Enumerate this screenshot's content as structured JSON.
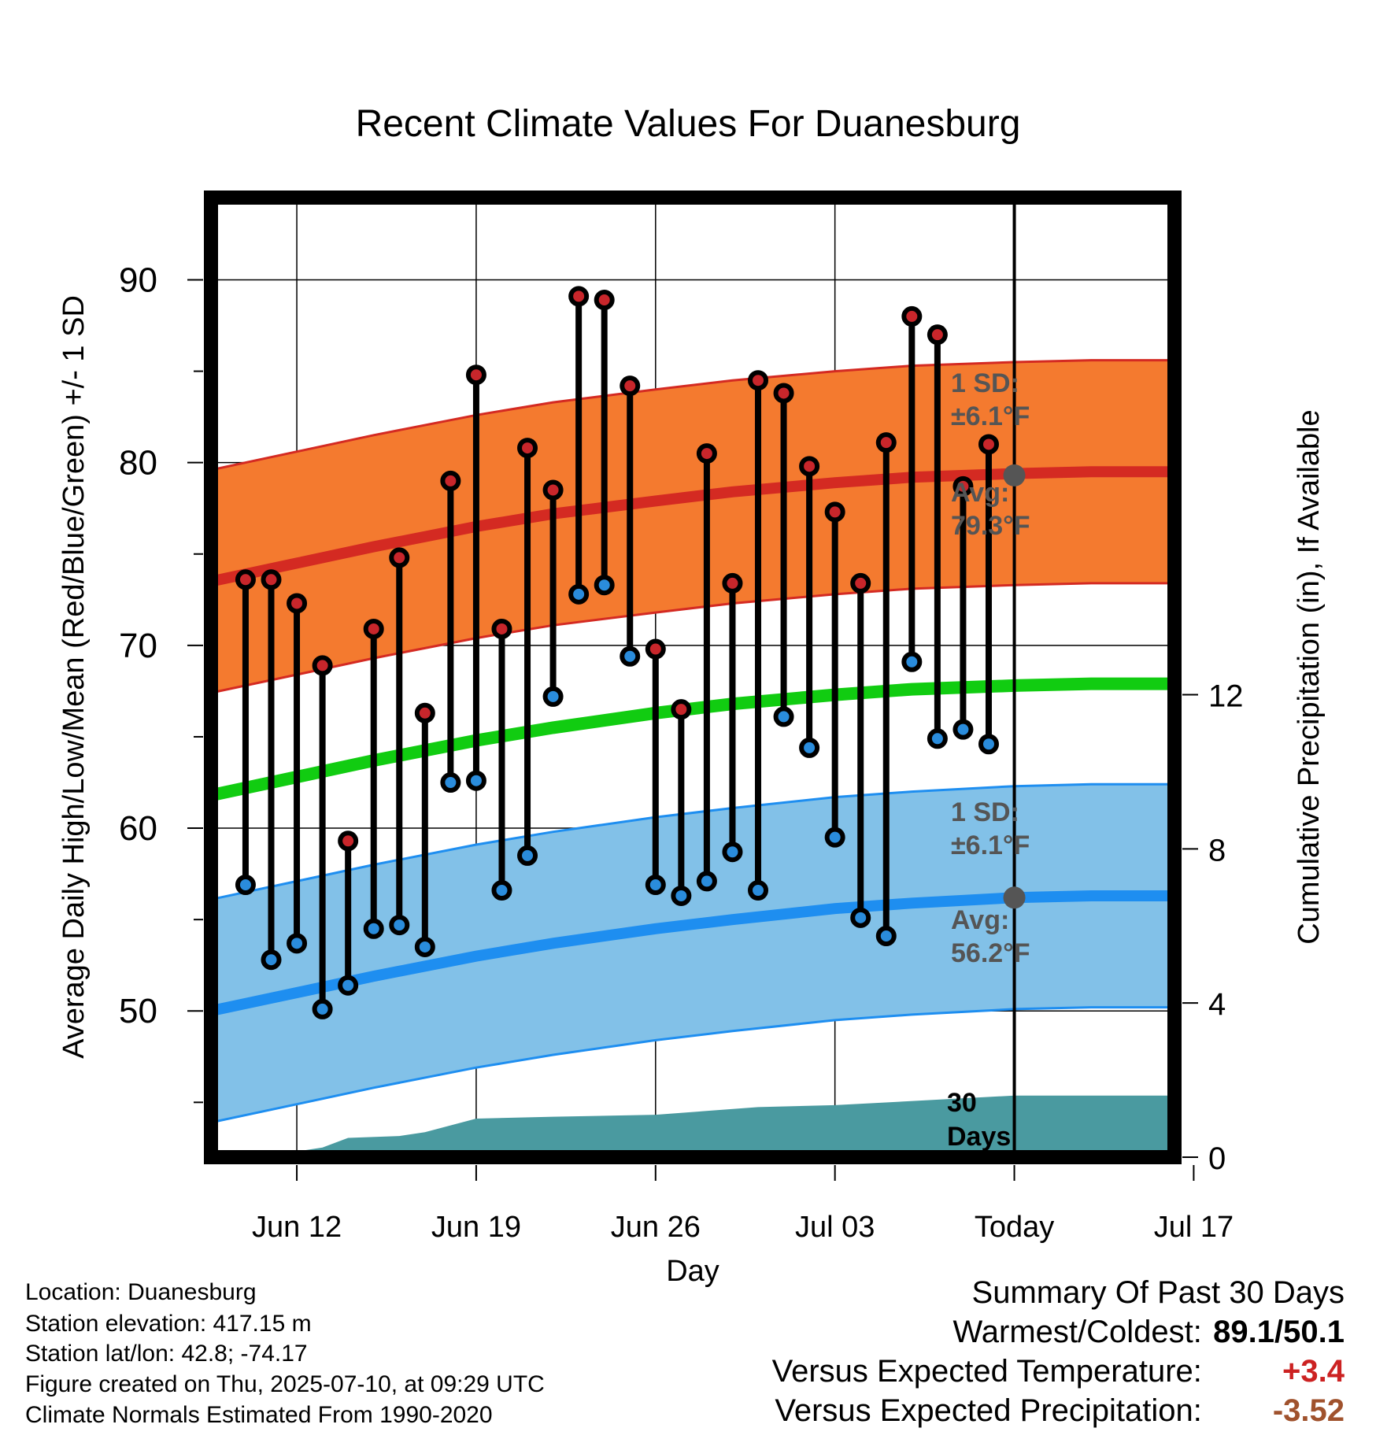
{
  "chart_data": {
    "type": "line",
    "title": "Recent Climate Values For Duanesburg",
    "xlabel": "Day",
    "ylabel": "Average Daily High/Low/Mean (Red/Blue/Green) +/- 1 SD",
    "y2label": "Cumulative Precipitation (in), If Available",
    "ylim": [
      42,
      94.5
    ],
    "y2lim": [
      0,
      24.9
    ],
    "yticks": [
      50,
      60,
      70,
      80,
      90
    ],
    "y2ticks": [
      0,
      4,
      8,
      12
    ],
    "xlim": [
      -3.35,
      34.25
    ],
    "xticks": [
      {
        "pos": 0,
        "label": "Jun 12"
      },
      {
        "pos": 7,
        "label": "Jun 19"
      },
      {
        "pos": 14,
        "label": "Jun 26"
      },
      {
        "pos": 21,
        "label": "Jul 03"
      },
      {
        "pos": 28,
        "label": "Today"
      },
      {
        "pos": 35,
        "label": "Jul 17"
      }
    ],
    "today_label": "30 Days",
    "observed": {
      "days": [
        -2,
        -1,
        0,
        1,
        2,
        3,
        4,
        5,
        6,
        7,
        8,
        9,
        10,
        11,
        12,
        13,
        14,
        15,
        16,
        17,
        18,
        19,
        20,
        21,
        22,
        23,
        24,
        25,
        26,
        27
      ],
      "high": [
        73.6,
        73.6,
        72.3,
        68.9,
        59.3,
        70.9,
        74.8,
        66.3,
        79.0,
        84.8,
        70.9,
        80.8,
        78.5,
        89.1,
        88.9,
        84.2,
        69.8,
        66.5,
        80.5,
        73.4,
        84.5,
        83.8,
        79.8,
        77.3,
        73.4,
        81.1,
        88.0,
        87.0,
        78.7,
        81.0
      ],
      "low": [
        56.9,
        52.8,
        53.7,
        50.1,
        51.4,
        54.5,
        54.7,
        53.5,
        62.5,
        62.6,
        56.6,
        58.5,
        67.2,
        72.8,
        73.3,
        69.4,
        56.9,
        56.3,
        57.1,
        58.7,
        56.6,
        66.1,
        64.4,
        59.5,
        55.1,
        54.1,
        69.1,
        64.9,
        65.4,
        64.6
      ]
    },
    "normals": {
      "days": [
        -3.35,
        0,
        3,
        7,
        10,
        14,
        17,
        21,
        24,
        28,
        31,
        34.25
      ],
      "high_avg": [
        73.5,
        74.5,
        75.4,
        76.5,
        77.2,
        77.9,
        78.4,
        78.9,
        79.2,
        79.4,
        79.5,
        79.5
      ],
      "low_avg": [
        50.0,
        51.0,
        51.9,
        53.0,
        53.7,
        54.5,
        55.0,
        55.6,
        55.9,
        56.2,
        56.3,
        56.3
      ],
      "mean_avg": [
        61.8,
        62.8,
        63.7,
        64.8,
        65.5,
        66.3,
        66.8,
        67.3,
        67.6,
        67.8,
        67.9,
        67.9
      ],
      "high_sd": 6.1,
      "low_sd": 6.1
    },
    "precip_cumulative": {
      "days": [
        -3,
        -2,
        0,
        1,
        2,
        4,
        5,
        7,
        10,
        14,
        18,
        21,
        28,
        34.25
      ],
      "values": [
        0.05,
        0.1,
        0.15,
        0.25,
        0.5,
        0.55,
        0.65,
        1.0,
        1.05,
        1.1,
        1.3,
        1.35,
        1.6,
        1.6
      ]
    },
    "annotations": {
      "high_sd_label": "1 SD:",
      "high_sd_value": "±6.1°F",
      "high_avg_label": "Avg:",
      "high_avg_value": "79.3°F",
      "low_sd_label": "1 SD:",
      "low_sd_value": "±6.1°F",
      "low_avg_label": "Avg:",
      "low_avg_value": "56.2°F"
    },
    "colors": {
      "high_band": "#f47a2f",
      "high_line": "#d42a22",
      "low_band": "#82c1e8",
      "low_line": "#1e8ef0",
      "mean_line": "#11cc11",
      "precip": "#4a9aa0",
      "high_marker": "#c8262b",
      "low_marker": "#2a8cdc",
      "annotation": "#555555"
    }
  },
  "info": {
    "location": "Location: Duanesburg",
    "elevation": "Station elevation: 417.15 m",
    "latlon": "Station lat/lon: 42.8; -74.17",
    "created": "Figure created on Thu, 2025-07-10, at 09:29 UTC",
    "normals": "Climate Normals Estimated From 1990-2020"
  },
  "summary": {
    "heading": "Summary Of Past 30 Days",
    "warmest_label": "Warmest/Coldest:",
    "warmest_value": "89.1/50.1",
    "temp_label": "Versus Expected Temperature:",
    "temp_value": "+3.4",
    "temp_color": "#cc2222",
    "precip_label": "Versus Expected Precipitation:",
    "precip_value": "-3.52",
    "precip_color": "#a0522d"
  }
}
